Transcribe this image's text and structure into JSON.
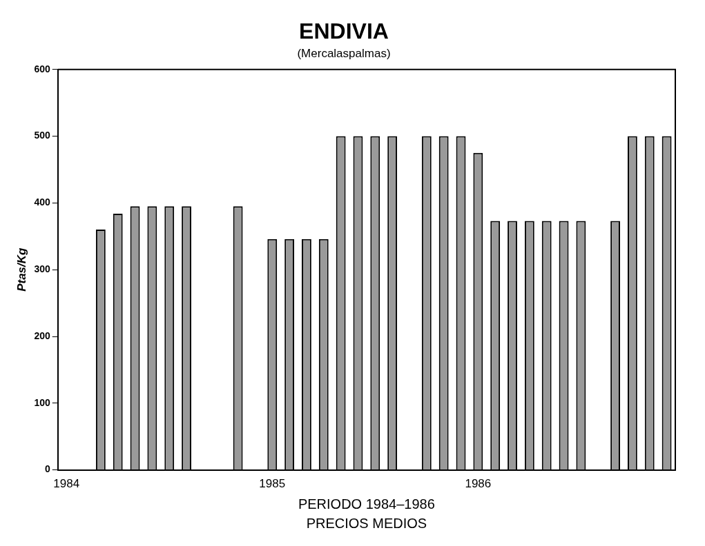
{
  "chart_data": {
    "type": "bar",
    "title": "ENDIVIA",
    "subtitle": "(Mercalaspalmas)",
    "xlabel": "PERIODO 1984–1986",
    "ylabel": "Ptas/Kg",
    "annotations": [
      "PRECIOS MEDIOS"
    ],
    "categories": [
      "1984",
      null,
      null,
      null,
      null,
      null,
      null,
      null,
      null,
      null,
      null,
      null,
      "1985",
      null,
      null,
      null,
      null,
      null,
      null,
      null,
      null,
      null,
      null,
      null,
      "1986",
      null,
      null,
      null,
      null,
      null,
      null,
      null,
      null,
      null,
      null,
      null
    ],
    "values": [
      null,
      null,
      360,
      384,
      395,
      395,
      395,
      395,
      null,
      null,
      395,
      null,
      346,
      346,
      346,
      346,
      500,
      500,
      500,
      500,
      null,
      500,
      500,
      500,
      475,
      373,
      373,
      373,
      373,
      373,
      373,
      null,
      373,
      500,
      500,
      500
    ],
    "color": "#9a9a9a",
    "ylim": [
      0,
      600
    ],
    "yticks": [
      0,
      100,
      200,
      300,
      400,
      500,
      600
    ],
    "grid": false,
    "legend": false
  }
}
